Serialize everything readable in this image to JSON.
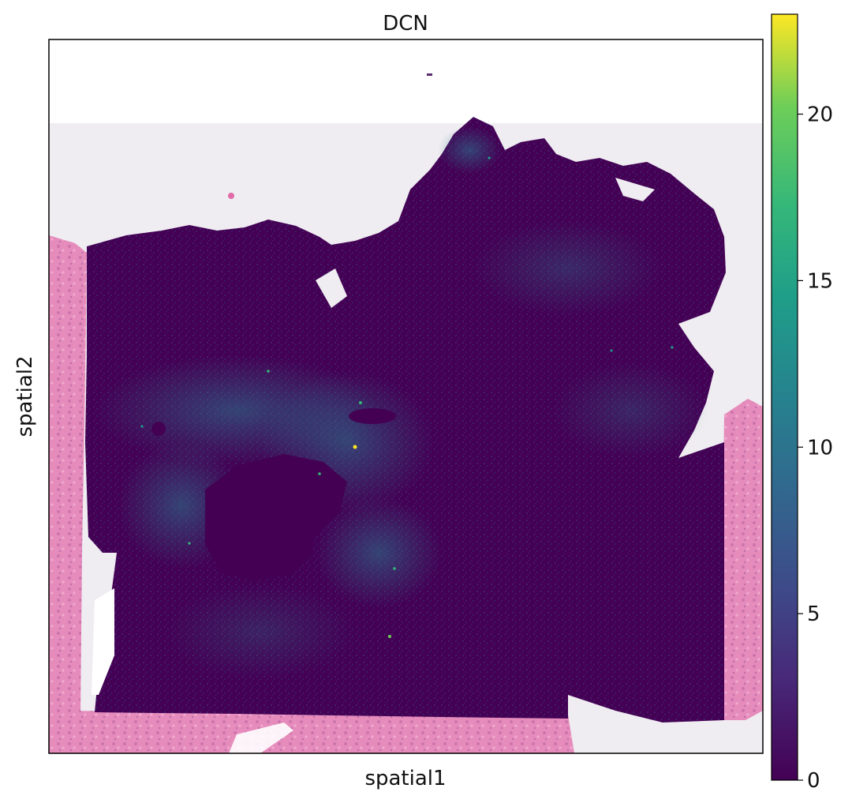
{
  "chart_data": {
    "type": "heatmap",
    "title": "DCN",
    "xlabel": "spatial1",
    "ylabel": "spatial2",
    "colorbar": {
      "colormap": "viridis",
      "range": [
        0,
        23
      ],
      "ticks": [
        0,
        5,
        10,
        15,
        20
      ],
      "tick_labels": [
        "0",
        "5",
        "10",
        "15",
        "20"
      ]
    },
    "axes_ticks_visible": false,
    "grid": false,
    "background": "H&E histology tissue image",
    "colors": {
      "low": "#440154",
      "mid": "#21918c",
      "high": "#fde725",
      "tissue_pink": "#e77fb6",
      "image_background": "#efedf1"
    }
  }
}
